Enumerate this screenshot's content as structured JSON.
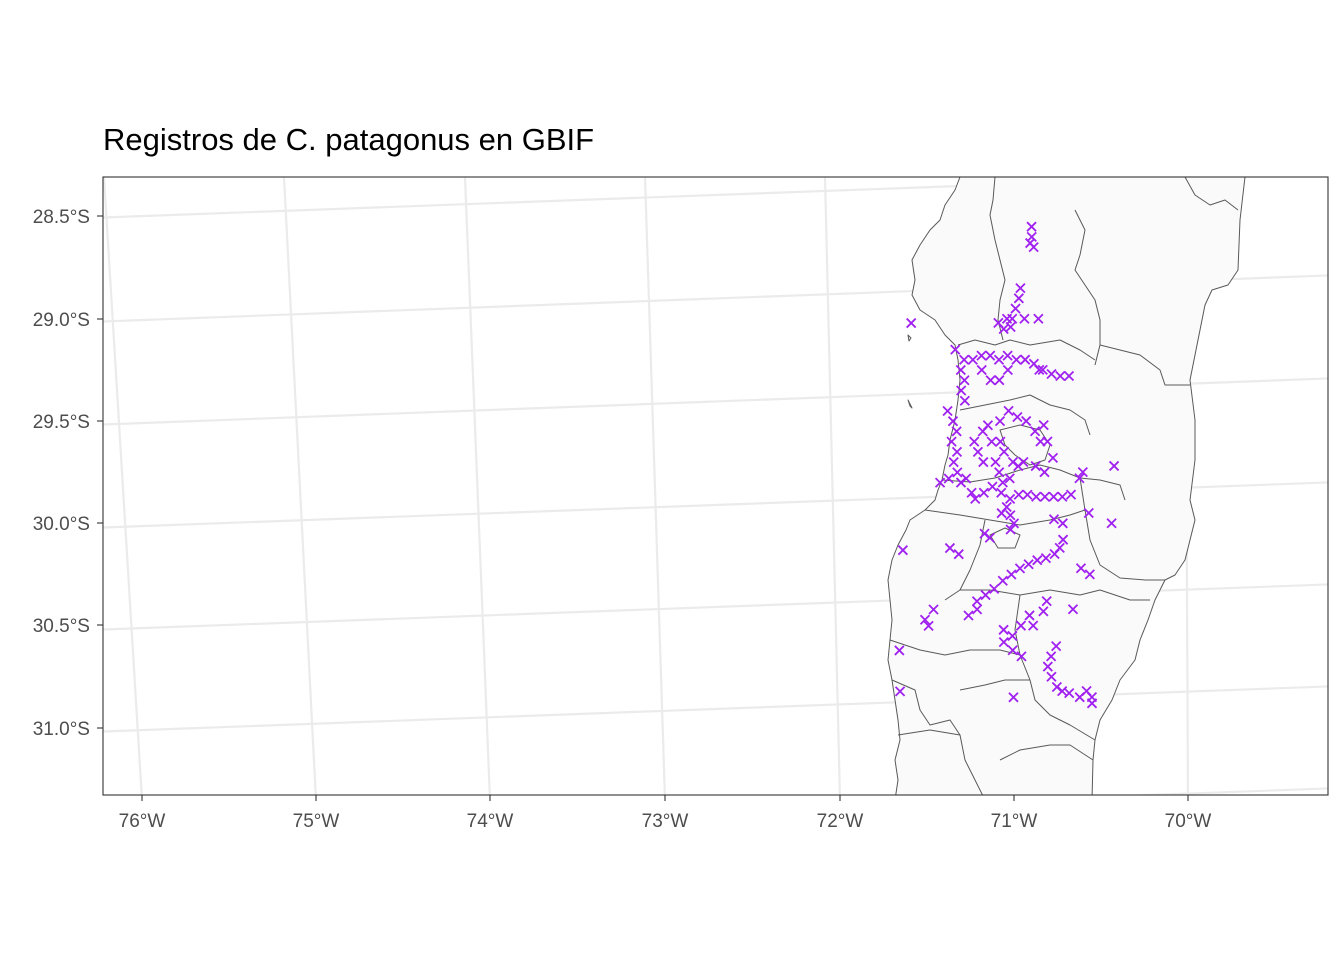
{
  "title": "Registros de C. patagonus en GBIF",
  "map": {
    "projection": "oblique (curved graticule)",
    "background": "#ffffff",
    "grid_color": "#ebebeb",
    "land_fill": "#fafafa",
    "boundary_color": "#595959",
    "point_color": "#a020f0",
    "point_shape": "x"
  },
  "axes": {
    "x_ticks": [
      "76°W",
      "75°W",
      "74°W",
      "73°W",
      "72°W",
      "71°W",
      "70°W"
    ],
    "y_ticks": [
      "28.5°S",
      "29.0°S",
      "29.5°S",
      "30.0°S",
      "30.5°S",
      "31.0°S"
    ]
  },
  "chart_data": {
    "type": "scatter",
    "title": "Registros de C. patagonus en GBIF",
    "xlabel": "",
    "ylabel": "",
    "xlim": [
      -76.2,
      -69.2
    ],
    "ylim": [
      -31.35,
      -28.3
    ],
    "series": [
      {
        "values": [
          [
            -70.85,
            -28.55
          ],
          [
            -70.85,
            -28.6
          ],
          [
            -70.86,
            -28.63
          ],
          [
            -70.84,
            -28.65
          ],
          [
            -70.92,
            -28.85
          ],
          [
            -70.93,
            -28.9
          ],
          [
            -70.95,
            -28.95
          ],
          [
            -70.97,
            -29.0
          ],
          [
            -71.02,
            -29.05
          ],
          [
            -71.05,
            -29.02
          ],
          [
            -71.0,
            -29.0
          ],
          [
            -70.98,
            -29.04
          ],
          [
            -70.9,
            -29.0
          ],
          [
            -70.82,
            -29.0
          ],
          [
            -71.55,
            -29.02
          ],
          [
            -71.3,
            -29.15
          ],
          [
            -71.25,
            -29.2
          ],
          [
            -71.2,
            -29.2
          ],
          [
            -71.15,
            -29.18
          ],
          [
            -71.1,
            -29.18
          ],
          [
            -71.05,
            -29.2
          ],
          [
            -71.0,
            -29.18
          ],
          [
            -70.95,
            -29.2
          ],
          [
            -70.9,
            -29.2
          ],
          [
            -70.85,
            -29.22
          ],
          [
            -70.8,
            -29.25
          ],
          [
            -70.75,
            -29.27
          ],
          [
            -70.7,
            -29.28
          ],
          [
            -70.65,
            -29.28
          ],
          [
            -70.82,
            -29.25
          ],
          [
            -71.27,
            -29.25
          ],
          [
            -71.25,
            -29.3
          ],
          [
            -71.27,
            -29.35
          ],
          [
            -71.25,
            -29.4
          ],
          [
            -71.15,
            -29.25
          ],
          [
            -71.1,
            -29.3
          ],
          [
            -71.05,
            -29.3
          ],
          [
            -71.0,
            -29.25
          ],
          [
            -71.35,
            -29.45
          ],
          [
            -71.32,
            -29.5
          ],
          [
            -71.3,
            -29.55
          ],
          [
            -71.33,
            -29.6
          ],
          [
            -71.3,
            -29.65
          ],
          [
            -71.32,
            -29.7
          ],
          [
            -71.3,
            -29.75
          ],
          [
            -71.28,
            -29.8
          ],
          [
            -71.4,
            -29.8
          ],
          [
            -71.35,
            -29.78
          ],
          [
            -71.25,
            -29.78
          ],
          [
            -71.22,
            -29.85
          ],
          [
            -71.2,
            -29.6
          ],
          [
            -71.18,
            -29.65
          ],
          [
            -71.15,
            -29.7
          ],
          [
            -71.1,
            -29.6
          ],
          [
            -71.15,
            -29.55
          ],
          [
            -71.12,
            -29.52
          ],
          [
            -71.05,
            -29.5
          ],
          [
            -71.0,
            -29.45
          ],
          [
            -70.95,
            -29.48
          ],
          [
            -70.9,
            -29.5
          ],
          [
            -70.85,
            -29.55
          ],
          [
            -70.8,
            -29.52
          ],
          [
            -71.05,
            -29.6
          ],
          [
            -71.03,
            -29.65
          ],
          [
            -70.98,
            -29.7
          ],
          [
            -70.95,
            -29.72
          ],
          [
            -71.08,
            -29.7
          ],
          [
            -71.06,
            -29.75
          ],
          [
            -71.04,
            -29.8
          ],
          [
            -71.0,
            -29.78
          ],
          [
            -70.92,
            -29.7
          ],
          [
            -70.85,
            -29.72
          ],
          [
            -70.8,
            -29.75
          ],
          [
            -70.75,
            -29.68
          ],
          [
            -70.82,
            -29.6
          ],
          [
            -70.78,
            -29.6
          ],
          [
            -70.6,
            -29.78
          ],
          [
            -70.58,
            -29.75
          ],
          [
            -70.4,
            -29.72
          ],
          [
            -71.2,
            -29.88
          ],
          [
            -71.15,
            -29.85
          ],
          [
            -71.1,
            -29.82
          ],
          [
            -71.05,
            -29.85
          ],
          [
            -71.0,
            -29.88
          ],
          [
            -70.95,
            -29.86
          ],
          [
            -70.9,
            -29.86
          ],
          [
            -70.85,
            -29.87
          ],
          [
            -70.8,
            -29.87
          ],
          [
            -70.75,
            -29.87
          ],
          [
            -70.7,
            -29.87
          ],
          [
            -70.65,
            -29.86
          ],
          [
            -71.02,
            -29.92
          ],
          [
            -71.0,
            -29.96
          ],
          [
            -70.98,
            -30.0
          ],
          [
            -71.05,
            -29.95
          ],
          [
            -70.55,
            -29.95
          ],
          [
            -70.42,
            -30.0
          ],
          [
            -70.75,
            -29.98
          ],
          [
            -70.7,
            -30.0
          ],
          [
            -71.15,
            -30.05
          ],
          [
            -71.12,
            -30.07
          ],
          [
            -71.0,
            -30.03
          ],
          [
            -70.7,
            -30.08
          ],
          [
            -70.72,
            -30.12
          ],
          [
            -70.75,
            -30.15
          ],
          [
            -70.8,
            -30.17
          ],
          [
            -70.85,
            -30.18
          ],
          [
            -70.9,
            -30.2
          ],
          [
            -70.95,
            -30.22
          ],
          [
            -71.0,
            -30.25
          ],
          [
            -71.05,
            -30.28
          ],
          [
            -71.1,
            -30.32
          ],
          [
            -71.15,
            -30.35
          ],
          [
            -71.2,
            -30.38
          ],
          [
            -71.2,
            -30.42
          ],
          [
            -71.25,
            -30.45
          ],
          [
            -70.6,
            -30.22
          ],
          [
            -70.55,
            -30.25
          ],
          [
            -71.3,
            -30.15
          ],
          [
            -71.35,
            -30.12
          ],
          [
            -71.62,
            -30.13
          ],
          [
            -71.45,
            -30.42
          ],
          [
            -71.5,
            -30.47
          ],
          [
            -71.48,
            -30.5
          ],
          [
            -71.05,
            -30.52
          ],
          [
            -71.0,
            -30.55
          ],
          [
            -70.95,
            -30.5
          ],
          [
            -70.9,
            -30.45
          ],
          [
            -70.88,
            -30.5
          ],
          [
            -70.82,
            -30.43
          ],
          [
            -70.8,
            -30.38
          ],
          [
            -70.75,
            -30.6
          ],
          [
            -70.78,
            -30.65
          ],
          [
            -70.8,
            -30.7
          ],
          [
            -70.78,
            -30.75
          ],
          [
            -70.75,
            -30.8
          ],
          [
            -70.72,
            -30.82
          ],
          [
            -70.68,
            -30.83
          ],
          [
            -70.62,
            -30.85
          ],
          [
            -70.55,
            -30.85
          ],
          [
            -70.55,
            -30.88
          ],
          [
            -70.58,
            -30.82
          ],
          [
            -70.95,
            -30.65
          ],
          [
            -71.0,
            -30.62
          ],
          [
            -71.05,
            -30.58
          ],
          [
            -71.65,
            -30.62
          ],
          [
            -71.65,
            -30.82
          ],
          [
            -71.0,
            -30.85
          ],
          [
            -70.65,
            -30.42
          ]
        ]
      }
    ]
  }
}
